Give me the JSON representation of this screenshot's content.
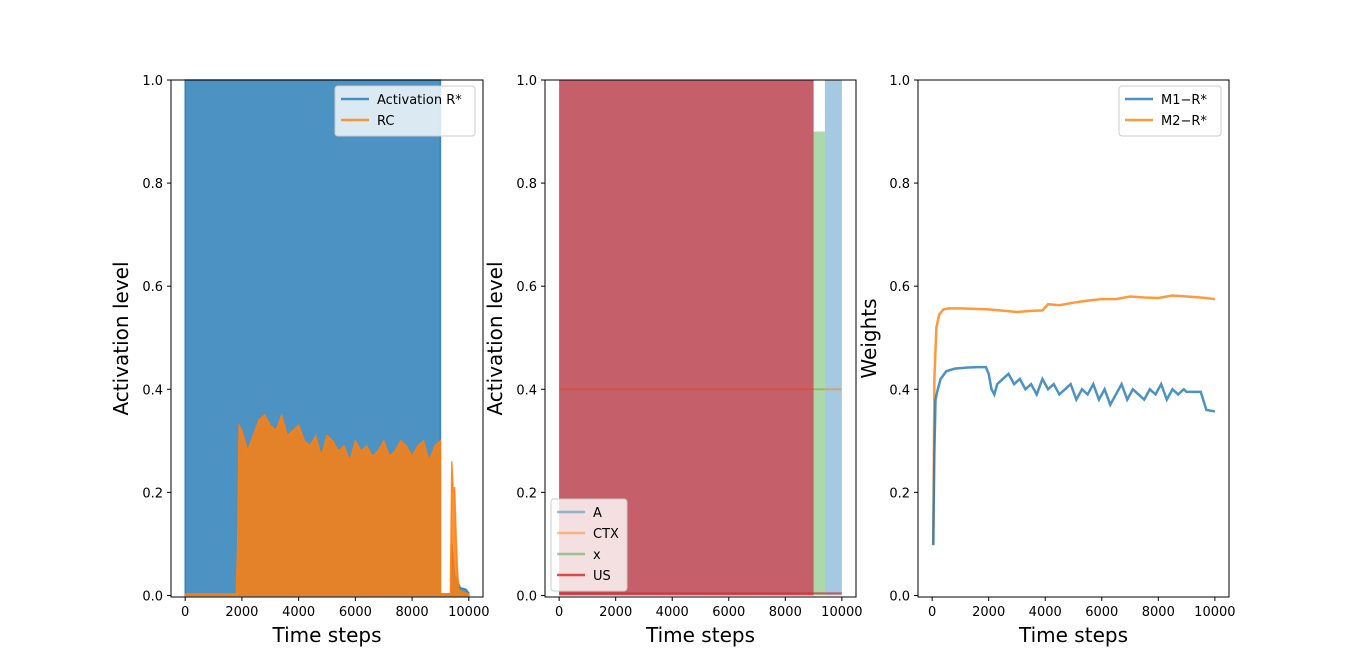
{
  "chart_data": [
    {
      "type": "area",
      "xlabel": "Time steps",
      "ylabel": "Activation level",
      "xlim": [
        -500,
        10500
      ],
      "ylim": [
        -0.003,
        1.0
      ],
      "xticks": [
        "0",
        "2000",
        "4000",
        "6000",
        "8000",
        "10000"
      ],
      "yticks": [
        "0.0",
        "0.2",
        "0.4",
        "0.6",
        "0.8",
        "1.0"
      ],
      "grid": false,
      "legend_position": "top-right",
      "colors": {
        "activation": "#1f77b4",
        "rc": "#ff7f0e"
      },
      "series": [
        {
          "name": "Activation R*",
          "description_points": {
            "x": [
              0,
              0,
              9000,
              9000,
              9400,
              9400,
              9500,
              9700,
              9900,
              10000
            ],
            "y": [
              0.0,
              1.0,
              1.0,
              0.003,
              0.003,
              0.1,
              0.04,
              0.015,
              0.012,
              0.005
            ]
          }
        },
        {
          "name": "RC",
          "envelope": {
            "x": [
              0,
              1800,
              1850,
              1900,
              2000,
              2200,
              2400,
              2600,
              2800,
              3000,
              3200,
              3400,
              3600,
              3800,
              4000,
              4200,
              4400,
              4600,
              4800,
              5000,
              5200,
              5400,
              5600,
              5800,
              6000,
              6200,
              6400,
              6600,
              6800,
              7000,
              7200,
              7400,
              7600,
              7800,
              8000,
              8200,
              8400,
              8600,
              8800,
              9000,
              9000,
              9350,
              9400,
              9450,
              9500,
              9550,
              9600,
              9650,
              10000
            ],
            "y": [
              0.003,
              0.003,
              0.1,
              0.33,
              0.32,
              0.28,
              0.31,
              0.34,
              0.35,
              0.33,
              0.32,
              0.35,
              0.31,
              0.32,
              0.33,
              0.3,
              0.29,
              0.31,
              0.27,
              0.31,
              0.3,
              0.28,
              0.29,
              0.26,
              0.3,
              0.28,
              0.29,
              0.27,
              0.28,
              0.3,
              0.27,
              0.28,
              0.3,
              0.29,
              0.27,
              0.29,
              0.3,
              0.26,
              0.29,
              0.3,
              0.003,
              0.003,
              0.26,
              0.2,
              0.21,
              0.12,
              0.05,
              0.01,
              0.003
            ]
          }
        }
      ]
    },
    {
      "type": "area",
      "xlabel": "Time steps",
      "ylabel": "Activation level",
      "xlim": [
        -500,
        10500
      ],
      "ylim": [
        -0.003,
        1.0
      ],
      "xticks": [
        "0",
        "2000",
        "4000",
        "6000",
        "8000",
        "10000"
      ],
      "yticks": [
        "0.0",
        "0.2",
        "0.4",
        "0.6",
        "0.8",
        "1.0"
      ],
      "grid": false,
      "legend_position": "bottom-left",
      "colors": {
        "a": "#1f77b4",
        "ctx": "#ff7f0e",
        "x": "#2ca02c",
        "us": "#d62728"
      },
      "series": [
        {
          "name": "A",
          "segments": [
            [
              0,
              9000,
              1.0
            ],
            [
              9400,
              10000,
              1.0
            ]
          ]
        },
        {
          "name": "CTX",
          "level": 0.4,
          "range": [
            0,
            10000
          ]
        },
        {
          "name": "x",
          "segments": [
            [
              9000,
              9400,
              0.9
            ]
          ]
        },
        {
          "name": "US",
          "segments": [
            [
              0,
              9000,
              1.0
            ]
          ]
        }
      ]
    },
    {
      "type": "line",
      "xlabel": "Time steps",
      "ylabel": "Weights",
      "xlim": [
        -500,
        10500
      ],
      "ylim": [
        -0.003,
        1.0
      ],
      "xticks": [
        "0",
        "2000",
        "4000",
        "6000",
        "8000",
        "10000"
      ],
      "yticks": [
        "0.0",
        "0.2",
        "0.4",
        "0.6",
        "0.8",
        "1.0"
      ],
      "grid": false,
      "legend_position": "top-right",
      "colors": {
        "m1": "#1f77b4",
        "m2": "#ff7f0e"
      },
      "series": [
        {
          "name": "M1−R*",
          "x": [
            0,
            40,
            80,
            120,
            200,
            300,
            500,
            800,
            1200,
            1600,
            1900,
            2000,
            2100,
            2200,
            2300,
            2500,
            2700,
            2900,
            3100,
            3300,
            3500,
            3700,
            3900,
            4100,
            4300,
            4500,
            4700,
            4900,
            5100,
            5300,
            5500,
            5700,
            5900,
            6100,
            6300,
            6500,
            6700,
            6900,
            7100,
            7300,
            7500,
            7700,
            7900,
            8100,
            8300,
            8500,
            8700,
            8900,
            9000,
            9500,
            9700,
            10000
          ],
          "y": [
            0.1,
            0.1,
            0.28,
            0.38,
            0.4,
            0.42,
            0.435,
            0.44,
            0.442,
            0.443,
            0.443,
            0.43,
            0.4,
            0.39,
            0.41,
            0.42,
            0.43,
            0.41,
            0.42,
            0.4,
            0.41,
            0.39,
            0.42,
            0.4,
            0.41,
            0.39,
            0.4,
            0.41,
            0.38,
            0.4,
            0.39,
            0.41,
            0.38,
            0.4,
            0.37,
            0.39,
            0.41,
            0.38,
            0.4,
            0.39,
            0.38,
            0.4,
            0.39,
            0.41,
            0.38,
            0.4,
            0.39,
            0.4,
            0.395,
            0.395,
            0.36,
            0.357
          ]
        },
        {
          "name": "M2−R*",
          "x": [
            0,
            40,
            80,
            150,
            250,
            400,
            600,
            1000,
            2000,
            3000,
            3500,
            3900,
            4100,
            4500,
            5000,
            5500,
            6000,
            6500,
            7000,
            7500,
            8000,
            8500,
            9000,
            9500,
            10000
          ],
          "y": [
            0.1,
            0.1,
            0.42,
            0.52,
            0.545,
            0.555,
            0.557,
            0.557,
            0.555,
            0.55,
            0.552,
            0.553,
            0.565,
            0.563,
            0.568,
            0.572,
            0.575,
            0.575,
            0.58,
            0.578,
            0.577,
            0.582,
            0.58,
            0.578,
            0.575
          ]
        }
      ]
    }
  ]
}
